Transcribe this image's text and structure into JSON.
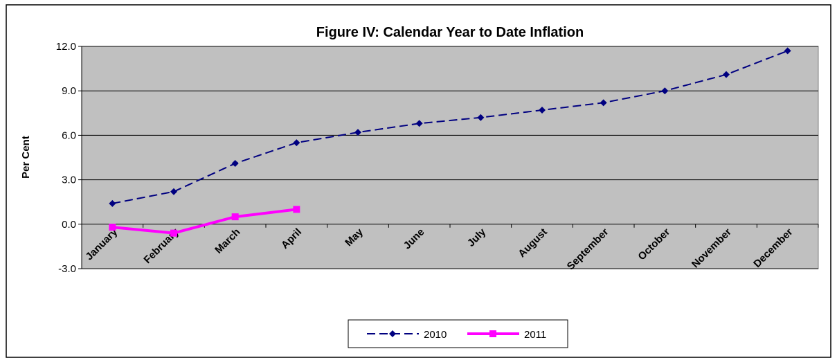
{
  "chart_data": {
    "type": "line",
    "title": "Figure IV: Calendar Year to Date Inflation",
    "y_label": "Per Cent",
    "categories": [
      "January",
      "February",
      "March",
      "April",
      "May",
      "June",
      "July",
      "August",
      "September",
      "October",
      "November",
      "December"
    ],
    "series": [
      {
        "name": "2010",
        "color": "#000080",
        "values": [
          1.4,
          2.2,
          4.1,
          5.5,
          6.2,
          6.8,
          7.2,
          7.7,
          8.2,
          9.0,
          10.1,
          11.7
        ]
      },
      {
        "name": "2011",
        "color": "#ff00ff",
        "values": [
          -0.2,
          -0.6,
          0.5,
          1.0,
          null,
          null,
          null,
          null,
          null,
          null,
          null,
          null
        ]
      }
    ],
    "ylim": [
      -3,
      12
    ],
    "yticks": [
      {
        "value": -3,
        "label": "-3.0"
      },
      {
        "value": 0,
        "label": "0.0"
      },
      {
        "value": 3,
        "label": "3.0"
      },
      {
        "value": 6,
        "label": "6.0"
      },
      {
        "value": 9,
        "label": "9.0"
      },
      {
        "value": 12,
        "label": "12.0"
      }
    ],
    "grid": true,
    "legend": "bottom"
  }
}
